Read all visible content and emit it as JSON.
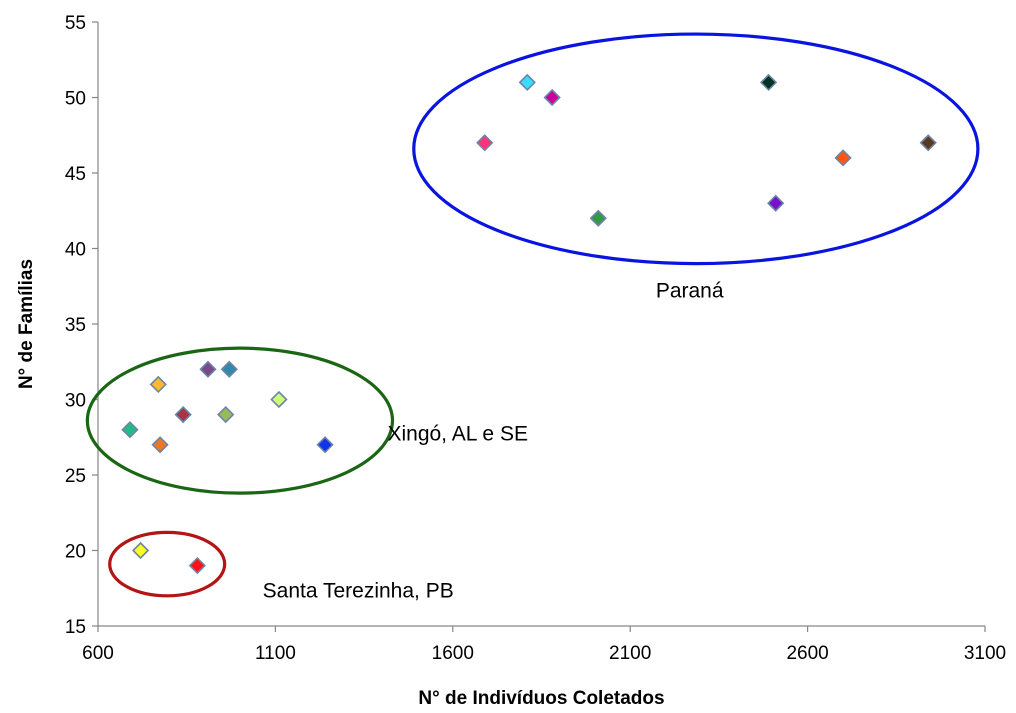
{
  "chart_data": {
    "type": "scatter",
    "title": "",
    "xlabel": "N° de Indivíduos Coletados",
    "ylabel": "N° de Famílias",
    "xlim": [
      600,
      3100
    ],
    "ylim": [
      15,
      55
    ],
    "x_ticks": [
      600,
      1100,
      1600,
      2100,
      2600,
      3100
    ],
    "y_ticks": [
      15,
      20,
      25,
      30,
      35,
      40,
      45,
      50,
      55
    ],
    "grid": false,
    "legend": "none",
    "marker": "diamond",
    "marker_edge_color": "#6C84A8",
    "points": [
      {
        "x": 1810,
        "y": 51,
        "color": "#33E0FF"
      },
      {
        "x": 1880,
        "y": 50,
        "color": "#CC0099"
      },
      {
        "x": 1690,
        "y": 47,
        "color": "#FF3377"
      },
      {
        "x": 2010,
        "y": 42,
        "color": "#339944"
      },
      {
        "x": 2490,
        "y": 51,
        "color": "#003322"
      },
      {
        "x": 2510,
        "y": 43,
        "color": "#7711CC"
      },
      {
        "x": 2700,
        "y": 46,
        "color": "#FF5511"
      },
      {
        "x": 2940,
        "y": 47,
        "color": "#5C3A1E"
      },
      {
        "x": 770,
        "y": 31,
        "color": "#FFB833"
      },
      {
        "x": 910,
        "y": 32,
        "color": "#7A4A88"
      },
      {
        "x": 970,
        "y": 32,
        "color": "#3388AA"
      },
      {
        "x": 1110,
        "y": 30,
        "color": "#CCFF77"
      },
      {
        "x": 690,
        "y": 28,
        "color": "#22BB88"
      },
      {
        "x": 840,
        "y": 29,
        "color": "#AA3344"
      },
      {
        "x": 960,
        "y": 29,
        "color": "#99BB55"
      },
      {
        "x": 775,
        "y": 27,
        "color": "#EE7722"
      },
      {
        "x": 1240,
        "y": 27,
        "color": "#1133EE"
      },
      {
        "x": 720,
        "y": 20,
        "color": "#FFFF22"
      },
      {
        "x": 880,
        "y": 19,
        "color": "#FF1111"
      }
    ],
    "groups": [
      {
        "label": "Paraná",
        "color": "#0A14E0",
        "cx": 2285,
        "cy": 46.6,
        "rx": 795,
        "ry": 7.6
      },
      {
        "label": "Xingó, AL e SE",
        "color": "#1A6614",
        "cx": 1000,
        "cy": 28.6,
        "rx": 430,
        "ry": 4.8
      },
      {
        "label": "Santa Terezinha, PB",
        "color": "#B41414",
        "cx": 795,
        "cy": 19.1,
        "rx": 162,
        "ry": 2.1
      }
    ]
  }
}
